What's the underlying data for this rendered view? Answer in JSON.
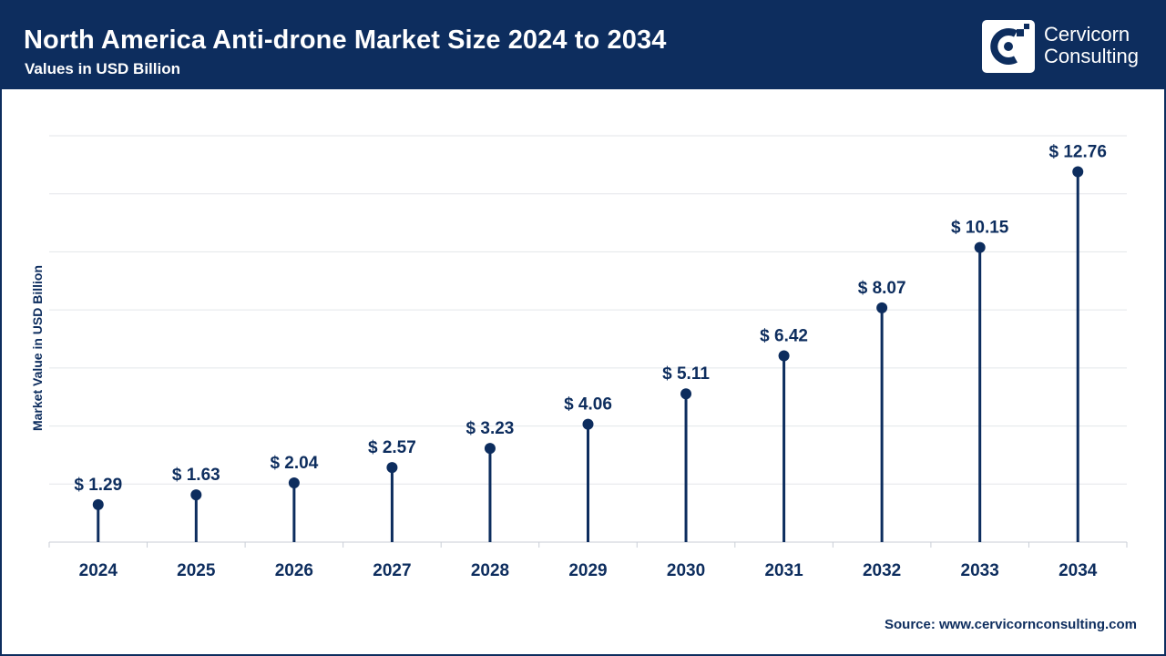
{
  "header": {
    "title": "North America Anti-drone Market Size 2024 to 2034",
    "subtitle": "Values in USD Billion"
  },
  "brand": {
    "name_line1": "Cervicorn",
    "name_line2": "Consulting"
  },
  "source": "Source: www.cervicornconsulting.com",
  "colors": {
    "primary": "#0d2d5e",
    "grid": "#e3e6ea"
  },
  "chart_data": {
    "type": "lollipop",
    "title": "North America Anti-drone Market Size 2024 to 2034",
    "subtitle": "Values in USD Billion",
    "xlabel": "",
    "ylabel": "Market Value in USD Billion",
    "categories": [
      "2024",
      "2025",
      "2026",
      "2027",
      "2028",
      "2029",
      "2030",
      "2031",
      "2032",
      "2033",
      "2034"
    ],
    "values": [
      1.29,
      1.63,
      2.04,
      2.57,
      3.23,
      4.06,
      5.11,
      6.42,
      8.07,
      10.15,
      12.76
    ],
    "labels": [
      "$ 1.29",
      "$ 1.63",
      "$ 2.04",
      "$ 2.57",
      "$ 3.23",
      "$ 4.06",
      "$ 5.11",
      "$ 6.42",
      "$ 8.07",
      "$ 10.15",
      "$ 12.76"
    ],
    "ylim": [
      0,
      14
    ],
    "grid": true,
    "legend": "none"
  }
}
